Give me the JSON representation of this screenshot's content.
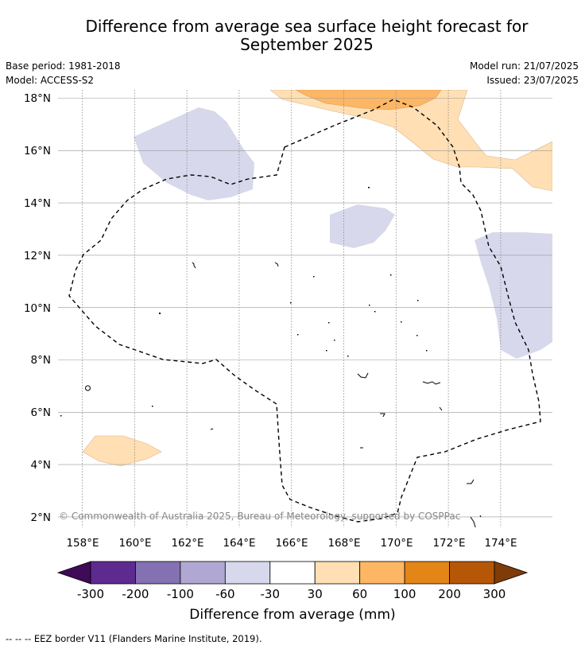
{
  "title_line1": "Difference from average sea surface height forecast for",
  "title_line2": "September 2025",
  "base_period": "Base period: 1981-2018",
  "model": "Model: ACCESS-S2",
  "model_run": "Model run: 21/07/2025",
  "issued": "Issued: 23/07/2025",
  "copyright": "© Commonwealth of Australia 2025, Bureau of Meteorology, supported by COSPPac",
  "lat_labels": [
    "18°N",
    "16°N",
    "14°N",
    "12°N",
    "10°N",
    "8°N",
    "6°N",
    "4°N",
    "2°N"
  ],
  "lon_labels": [
    "158°E",
    "160°E",
    "162°E",
    "164°E",
    "166°E",
    "168°E",
    "170°E",
    "172°E",
    "174°E"
  ],
  "colorbar": {
    "title": "Difference from average (mm)",
    "tick_labels": [
      "-300",
      "-200",
      "-100",
      "-60",
      "-30",
      "30",
      "60",
      "100",
      "200",
      "300"
    ],
    "colors": [
      "#3f0a58",
      "#5d2a90",
      "#8371b1",
      "#b0a8d3",
      "#d8d8ec",
      "#ffffff",
      "#ffdfb3",
      "#fdb664",
      "#e48518",
      "#b65707",
      "#7f3b08"
    ]
  },
  "legend_line": "EEZ border V11 (Flanders Marine Institute, 2019).",
  "legend_symbol": "-- -- --"
}
